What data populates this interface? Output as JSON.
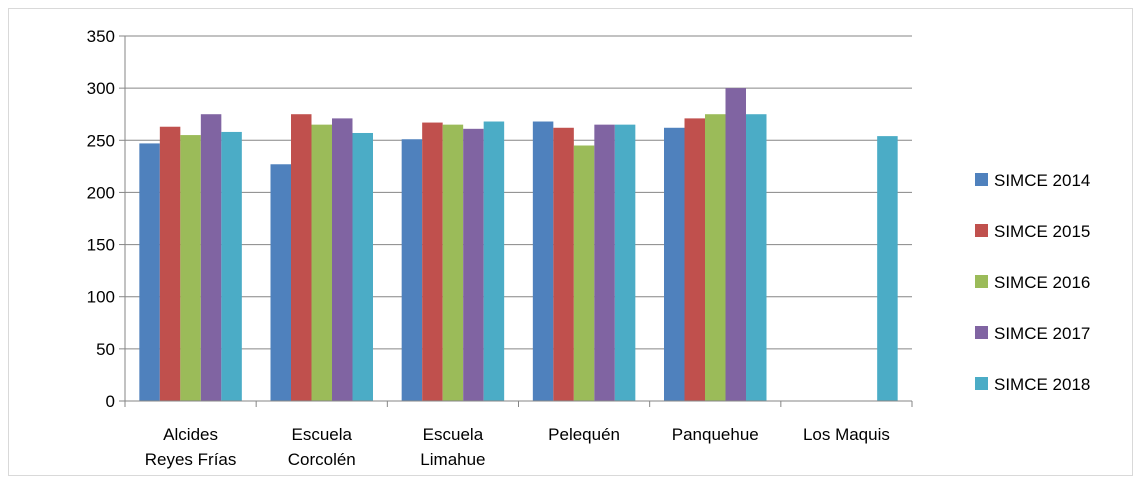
{
  "chart_data": {
    "type": "bar",
    "categories": [
      [
        "Alcides",
        "Reyes Frías"
      ],
      [
        "Escuela",
        "Corcolén"
      ],
      [
        "Escuela",
        "Limahue"
      ],
      [
        "Pelequén"
      ],
      [
        "Panquehue"
      ],
      [
        "Los Maquis"
      ]
    ],
    "series": [
      {
        "name": "SIMCE 2014",
        "color": "#4f81bd",
        "values": [
          247,
          227,
          251,
          268,
          262,
          null
        ]
      },
      {
        "name": "SIMCE 2015",
        "color": "#c0504d",
        "values": [
          263,
          275,
          267,
          262,
          271,
          null
        ]
      },
      {
        "name": "SIMCE 2016",
        "color": "#9bbb59",
        "values": [
          255,
          265,
          265,
          245,
          275,
          null
        ]
      },
      {
        "name": "SIMCE 2017",
        "color": "#8064a2",
        "values": [
          275,
          271,
          261,
          265,
          300,
          null
        ]
      },
      {
        "name": "SIMCE 2018",
        "color": "#4bacc6",
        "values": [
          258,
          257,
          268,
          265,
          275,
          254
        ]
      }
    ],
    "ylim": [
      0,
      350
    ],
    "yticks": [
      0,
      50,
      100,
      150,
      200,
      250,
      300,
      350
    ],
    "grid": true,
    "legend": "right"
  }
}
